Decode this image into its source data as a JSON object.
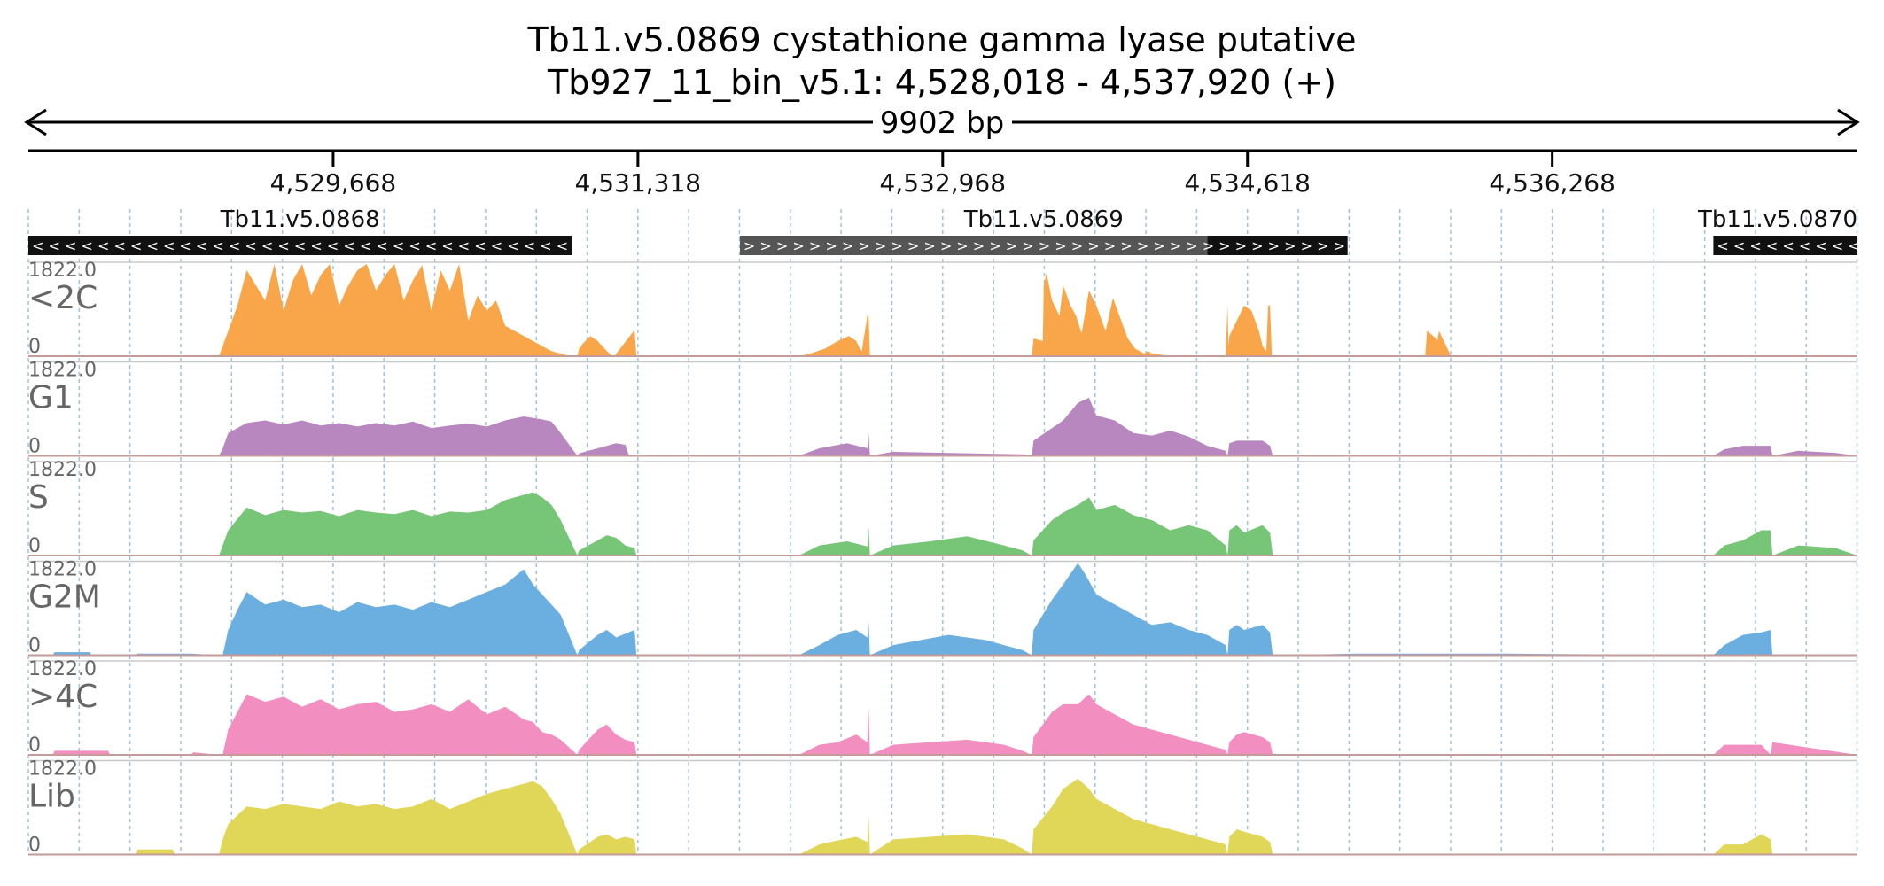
{
  "header": {
    "title_line1": "Tb11.v5.0869  cystathione gamma lyase  putative",
    "title_line2": "Tb927_11_bin_v5.1: 4,528,018 - 4,537,920 (+)",
    "span_label": "9902 bp"
  },
  "colors": {
    "text": "#111111",
    "axis": "#000000",
    "gridline": "#9ec2e6",
    "gene_fill": "#111111",
    "gene_utr_fill": "#555555",
    "track_label": "#666666",
    "baseline": "#c59a9a",
    "separator": "#c8c8c8"
  },
  "chart_data": {
    "type": "area",
    "region": {
      "chromosome": "Tb927_11_bin_v5.1",
      "start": 4528018,
      "end": 4537920,
      "strand": "+"
    },
    "xlim": [
      4528018,
      4537920
    ],
    "ylim": [
      0,
      1822
    ],
    "x_ticks": [
      4529668,
      4531318,
      4532968,
      4534618,
      4536268
    ],
    "x_tick_labels": [
      "4,529,668",
      "4,531,318",
      "4,532,968",
      "4,534,618",
      "4,536,268"
    ],
    "grid": true,
    "genes": [
      {
        "name": "Tb11.v5.0868",
        "start": 4528018,
        "end": 4530960,
        "strand": "-",
        "utr": []
      },
      {
        "name": "Tb11.v5.0869",
        "start": 4531870,
        "end": 4535160,
        "strand": "+",
        "utr": [
          [
            4531870,
            4534400
          ]
        ]
      },
      {
        "name": "Tb11.v5.0870",
        "start": 4537140,
        "end": 4537920,
        "strand": "-",
        "utr": []
      }
    ],
    "series": [
      {
        "name": "<2C",
        "color": "#f9a64a",
        "max_label": "1822.0",
        "min_label": "0",
        "x": [
          4528018,
          4529050,
          4529070,
          4529100,
          4529150,
          4529200,
          4529250,
          4529300,
          4529350,
          4529400,
          4529450,
          4529500,
          4529550,
          4529600,
          4529650,
          4529700,
          4529750,
          4529800,
          4529850,
          4529900,
          4529950,
          4530000,
          4530050,
          4530100,
          4530150,
          4530200,
          4530250,
          4530300,
          4530350,
          4530400,
          4530450,
          4530500,
          4530550,
          4530600,
          4530650,
          4530700,
          4530750,
          4530800,
          4530850,
          4530900,
          4530950,
          4530990,
          4531000,
          4531020,
          4531060,
          4531100,
          4531150,
          4531180,
          4531190,
          4531300,
          4531310,
          4532190,
          4532250,
          4532330,
          4532400,
          4532460,
          4532500,
          4532520,
          4532530,
          4532560,
          4532567,
          4532574,
          4533450,
          4533460,
          4533510,
          4533515,
          4533530,
          4533560,
          4533600,
          4533620,
          4533660,
          4533690,
          4533720,
          4533760,
          4533800,
          4533850,
          4533890,
          4533930,
          4533970,
          4534010,
          4534060,
          4534080,
          4534100,
          4534170,
          4534230,
          4534320,
          4534410,
          4534500,
          4534510,
          4534515,
          4534520,
          4534560,
          4534600,
          4534640,
          4534680,
          4534700,
          4534720,
          4534730,
          4534740,
          4534750,
          4534755,
          4535580,
          4535590,
          4535640,
          4535645,
          4535655,
          4535720,
          4535725,
          4537920
        ],
        "y": [
          0,
          0,
          200,
          500,
          1000,
          1700,
          1400,
          1100,
          1822,
          900,
          1500,
          1822,
          1200,
          1600,
          1822,
          1000,
          1400,
          1700,
          1822,
          1300,
          1600,
          1822,
          1100,
          1500,
          1800,
          900,
          1700,
          1300,
          1822,
          700,
          1200,
          900,
          1100,
          600,
          500,
          400,
          300,
          200,
          100,
          50,
          0,
          0,
          150,
          250,
          400,
          300,
          100,
          0,
          0,
          520,
          0,
          0,
          50,
          150,
          300,
          400,
          300,
          150,
          100,
          800,
          800,
          0,
          0,
          350,
          300,
          1400,
          1650,
          1100,
          800,
          1400,
          1000,
          800,
          450,
          1300,
          1000,
          500,
          1150,
          750,
          350,
          150,
          50,
          100,
          50,
          20,
          10,
          5,
          0,
          0,
          1000,
          200,
          400,
          700,
          1000,
          900,
          500,
          200,
          100,
          1000,
          1000,
          0,
          0,
          0,
          500,
          350,
          300,
          500,
          0,
          0,
          0
        ]
      },
      {
        "name": "G1",
        "color": "#b987c0",
        "max_label": "1822.0",
        "min_label": "0",
        "x": [
          4528018,
          4528600,
          4528610,
          4528800,
          4528810,
          4529050,
          4529070,
          4529100,
          4529200,
          4529300,
          4529400,
          4529500,
          4529600,
          4529700,
          4529800,
          4529900,
          4530000,
          4530100,
          4530200,
          4530300,
          4530400,
          4530500,
          4530600,
          4530700,
          4530800,
          4530850,
          4530900,
          4530990,
          4531000,
          4531100,
          4531200,
          4531250,
          4531270,
          4531310,
          4532190,
          4532300,
          4532450,
          4532560,
          4532567,
          4532574,
          4532700,
          4533100,
          4533400,
          4533450,
          4533460,
          4533560,
          4533620,
          4533700,
          4533760,
          4533800,
          4533900,
          4534000,
          4534100,
          4534200,
          4534300,
          4534400,
          4534500,
          4534510,
          4534520,
          4534560,
          4534600,
          4534700,
          4534740,
          4534755,
          4535200,
          4535600,
          4535800,
          4536000,
          4537140,
          4537200,
          4537300,
          4537400,
          4537450,
          4537460,
          4537600,
          4537800,
          4537920
        ],
        "y": [
          0,
          0,
          20,
          20,
          0,
          0,
          150,
          450,
          650,
          700,
          620,
          700,
          600,
          650,
          580,
          650,
          600,
          680,
          550,
          600,
          640,
          580,
          700,
          780,
          720,
          680,
          450,
          0,
          50,
          150,
          250,
          220,
          0,
          0,
          0,
          150,
          250,
          150,
          450,
          0,
          80,
          50,
          30,
          0,
          300,
          550,
          700,
          1050,
          1150,
          800,
          700,
          450,
          400,
          500,
          380,
          200,
          100,
          0,
          250,
          300,
          300,
          300,
          200,
          0,
          20,
          20,
          20,
          20,
          0,
          130,
          200,
          200,
          200,
          0,
          100,
          60,
          0
        ]
      },
      {
        "name": "S",
        "color": "#77c576",
        "max_label": "1822.0",
        "min_label": "0",
        "x": [
          4528018,
          4529050,
          4529070,
          4529100,
          4529200,
          4529300,
          4529400,
          4529500,
          4529600,
          4529700,
          4529800,
          4529900,
          4530000,
          4530100,
          4530200,
          4530300,
          4530400,
          4530500,
          4530600,
          4530700,
          4530750,
          4530800,
          4530850,
          4530900,
          4530990,
          4531000,
          4531100,
          4531150,
          4531200,
          4531250,
          4531300,
          4531310,
          4532190,
          4532300,
          4532450,
          4532560,
          4532567,
          4532574,
          4532700,
          4532900,
          4533100,
          4533300,
          4533400,
          4533450,
          4533460,
          4533560,
          4533620,
          4533700,
          4533760,
          4533800,
          4533900,
          4534000,
          4534100,
          4534200,
          4534300,
          4534400,
          4534500,
          4534510,
          4534520,
          4534560,
          4534600,
          4534700,
          4534740,
          4534755,
          4537140,
          4537200,
          4537300,
          4537400,
          4537450,
          4537460,
          4537600,
          4537800,
          4537920
        ],
        "y": [
          0,
          0,
          200,
          500,
          950,
          800,
          900,
          850,
          880,
          780,
          900,
          850,
          820,
          900,
          780,
          870,
          850,
          900,
          1100,
          1200,
          1250,
          1150,
          1000,
          700,
          0,
          100,
          300,
          400,
          350,
          200,
          150,
          0,
          0,
          200,
          280,
          180,
          560,
          0,
          200,
          280,
          380,
          200,
          100,
          0,
          300,
          700,
          850,
          1000,
          1150,
          900,
          1000,
          800,
          700,
          500,
          600,
          500,
          200,
          0,
          500,
          600,
          450,
          600,
          450,
          0,
          0,
          200,
          300,
          500,
          500,
          0,
          200,
          150,
          0
        ]
      },
      {
        "name": "G2M",
        "color": "#6baee0",
        "max_label": "1822.0",
        "min_label": "0",
        "x": [
          4528018,
          4528150,
          4528160,
          4528350,
          4528360,
          4528600,
          4528610,
          4528900,
          4529050,
          4529070,
          4529100,
          4529150,
          4529200,
          4529300,
          4529400,
          4529500,
          4529600,
          4529700,
          4529800,
          4529900,
          4530000,
          4530100,
          4530200,
          4530300,
          4530400,
          4530500,
          4530600,
          4530650,
          4530700,
          4530750,
          4530800,
          4530850,
          4530900,
          4530990,
          4531000,
          4531100,
          4531150,
          4531200,
          4531300,
          4531310,
          4532190,
          4532300,
          4532400,
          4532500,
          4532560,
          4532567,
          4532574,
          4532700,
          4533000,
          4533200,
          4533300,
          4533400,
          4533450,
          4533460,
          4533560,
          4533620,
          4533700,
          4533740,
          4533800,
          4533900,
          4534000,
          4534100,
          4534200,
          4534300,
          4534400,
          4534500,
          4534510,
          4534520,
          4534560,
          4534600,
          4534700,
          4534740,
          4534755,
          4535200,
          4535600,
          4536000,
          4537140,
          4537200,
          4537300,
          4537400,
          4537450,
          4537460,
          4537920
        ],
        "y": [
          0,
          0,
          60,
          60,
          0,
          0,
          30,
          30,
          0,
          0,
          500,
          900,
          1250,
          1000,
          1100,
          950,
          1000,
          850,
          1050,
          950,
          1000,
          900,
          1050,
          950,
          1100,
          1250,
          1400,
          1550,
          1700,
          1400,
          1200,
          1000,
          800,
          0,
          100,
          400,
          500,
          350,
          500,
          0,
          0,
          200,
          400,
          500,
          350,
          650,
          0,
          200,
          400,
          300,
          200,
          100,
          0,
          500,
          1100,
          1400,
          1822,
          1600,
          1200,
          1000,
          800,
          600,
          650,
          500,
          400,
          200,
          0,
          500,
          600,
          500,
          600,
          450,
          0,
          30,
          30,
          30,
          0,
          200,
          400,
          450,
          500,
          0,
          0
        ]
      },
      {
        "name": ">4C",
        "color": "#f28ec0",
        "max_label": "1822.0",
        "min_label": "0",
        "x": [
          4528018,
          4528150,
          4528160,
          4528450,
          4528460,
          4528900,
          4528910,
          4529050,
          4529070,
          4529100,
          4529200,
          4529300,
          4529400,
          4529500,
          4529600,
          4529700,
          4529800,
          4529900,
          4530000,
          4530100,
          4530200,
          4530300,
          4530400,
          4530500,
          4530600,
          4530700,
          4530750,
          4530800,
          4530850,
          4530900,
          4530990,
          4531000,
          4531100,
          4531150,
          4531200,
          4531250,
          4531300,
          4531310,
          4532190,
          4532300,
          4532400,
          4532500,
          4532560,
          4532567,
          4532574,
          4532700,
          4532900,
          4533100,
          4533300,
          4533400,
          4533450,
          4533460,
          4533560,
          4533620,
          4533700,
          4533760,
          4533800,
          4533900,
          4534000,
          4534100,
          4534200,
          4534300,
          4534400,
          4534500,
          4534510,
          4534520,
          4534560,
          4534600,
          4534700,
          4534740,
          4534755,
          4537140,
          4537200,
          4537300,
          4537400,
          4537450,
          4537460,
          4537920
        ],
        "y": [
          0,
          0,
          80,
          80,
          0,
          0,
          50,
          0,
          0,
          500,
          1200,
          1050,
          1150,
          950,
          1100,
          900,
          1000,
          1050,
          850,
          900,
          1000,
          850,
          1100,
          800,
          950,
          700,
          650,
          450,
          400,
          300,
          0,
          100,
          500,
          600,
          400,
          300,
          250,
          0,
          0,
          200,
          250,
          400,
          250,
          950,
          0,
          200,
          250,
          300,
          200,
          80,
          0,
          350,
          850,
          1000,
          1000,
          1200,
          1000,
          800,
          600,
          500,
          400,
          300,
          200,
          100,
          0,
          250,
          400,
          450,
          350,
          250,
          0,
          0,
          200,
          200,
          200,
          0,
          250,
          0
        ]
      },
      {
        "name": "Lib",
        "color": "#e0d657",
        "max_label": "1822.0",
        "min_label": "0",
        "x": [
          4528018,
          4528600,
          4528610,
          4528800,
          4528810,
          4529050,
          4529070,
          4529100,
          4529200,
          4529300,
          4529400,
          4529500,
          4529600,
          4529700,
          4529800,
          4529900,
          4530000,
          4530100,
          4530200,
          4530300,
          4530400,
          4530500,
          4530600,
          4530700,
          4530750,
          4530800,
          4530850,
          4530900,
          4530990,
          4531000,
          4531100,
          4531150,
          4531200,
          4531250,
          4531300,
          4531310,
          4532190,
          4532300,
          4532400,
          4532500,
          4532560,
          4532567,
          4532574,
          4532700,
          4532900,
          4533100,
          4533300,
          4533400,
          4533450,
          4533460,
          4533560,
          4533620,
          4533700,
          4533760,
          4533800,
          4533900,
          4534000,
          4534100,
          4534200,
          4534300,
          4534400,
          4534500,
          4534510,
          4534520,
          4534560,
          4534600,
          4534700,
          4534740,
          4534755,
          4537140,
          4537200,
          4537300,
          4537400,
          4537450,
          4537460,
          4537920
        ],
        "y": [
          0,
          0,
          100,
          100,
          0,
          0,
          300,
          600,
          950,
          900,
          1000,
          950,
          900,
          1050,
          950,
          1000,
          900,
          950,
          1100,
          900,
          1050,
          1200,
          1300,
          1400,
          1450,
          1350,
          1100,
          800,
          0,
          100,
          350,
          400,
          300,
          350,
          300,
          0,
          0,
          200,
          280,
          350,
          250,
          760,
          0,
          300,
          350,
          400,
          300,
          120,
          0,
          500,
          950,
          1300,
          1500,
          1300,
          1100,
          900,
          700,
          600,
          500,
          400,
          300,
          200,
          0,
          350,
          500,
          450,
          350,
          250,
          0,
          0,
          200,
          200,
          400,
          300,
          0,
          0
        ]
      }
    ]
  }
}
